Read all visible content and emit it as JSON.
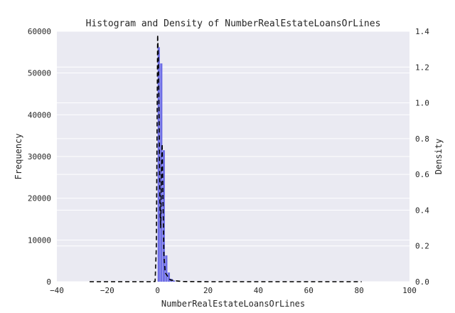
{
  "chart_data": {
    "type": "histogram",
    "title": "Histogram and Density of NumberRealEstateLoansOrLines",
    "xlabel": "NumberRealEstateLoansOrLines",
    "ylabel": "Frequency",
    "y2label": "Density",
    "xlim": [
      -40,
      100
    ],
    "ylim": [
      0,
      60000
    ],
    "y2lim": [
      0,
      1.4
    ],
    "xticks": [
      -40,
      -20,
      0,
      20,
      40,
      60,
      80,
      100
    ],
    "yticks": [
      0,
      10000,
      20000,
      30000,
      40000,
      50000,
      60000
    ],
    "y2ticks": [
      "0.0",
      "0.2",
      "0.4",
      "0.6",
      "0.8",
      "1.0",
      "1.2",
      "1.4"
    ],
    "grid": true,
    "background": "#EAEAF2",
    "bar_color": "#6E6EE6",
    "density_color": "#000000",
    "histogram": {
      "bins": [
        0,
        1,
        2,
        3,
        4,
        5,
        6
      ],
      "frequency": [
        56200,
        52300,
        31500,
        6300,
        2200,
        700,
        300
      ]
    },
    "density": {
      "x": [
        -27,
        -10,
        -5,
        -2,
        -1,
        -0.5,
        0,
        0.3,
        0.6,
        0.9,
        1.2,
        1.5,
        1.8,
        2.2,
        2.5,
        3,
        4,
        5,
        7,
        10,
        20,
        40,
        60,
        81
      ],
      "y": [
        0,
        0,
        0,
        0,
        0.002,
        0.2,
        1.38,
        1.25,
        0.9,
        0.45,
        0.3,
        0.6,
        0.77,
        0.4,
        0.15,
        0.05,
        0.03,
        0.01,
        0.005,
        0.001,
        0,
        0,
        0,
        0
      ]
    }
  }
}
